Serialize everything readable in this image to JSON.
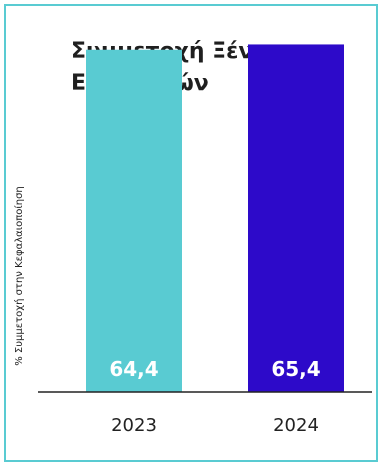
{
  "title": "Συμμετοχή Ξένων Επενδυτών",
  "chart_data": {
    "type": "bar",
    "title": "Συμμετοχή Ξένων Επενδυτών",
    "ylabel": "% Συμμετοχή στην Κεφαλαιοποίηση",
    "xlabel": "",
    "categories": [
      "2023",
      "2024"
    ],
    "values": [
      64.4,
      65.4
    ],
    "value_labels": [
      "64,4",
      "65,4"
    ],
    "colors": [
      "#59cbd2",
      "#2d0ac9"
    ],
    "ylim": [
      0,
      70
    ],
    "grid": false,
    "legend": "none"
  }
}
